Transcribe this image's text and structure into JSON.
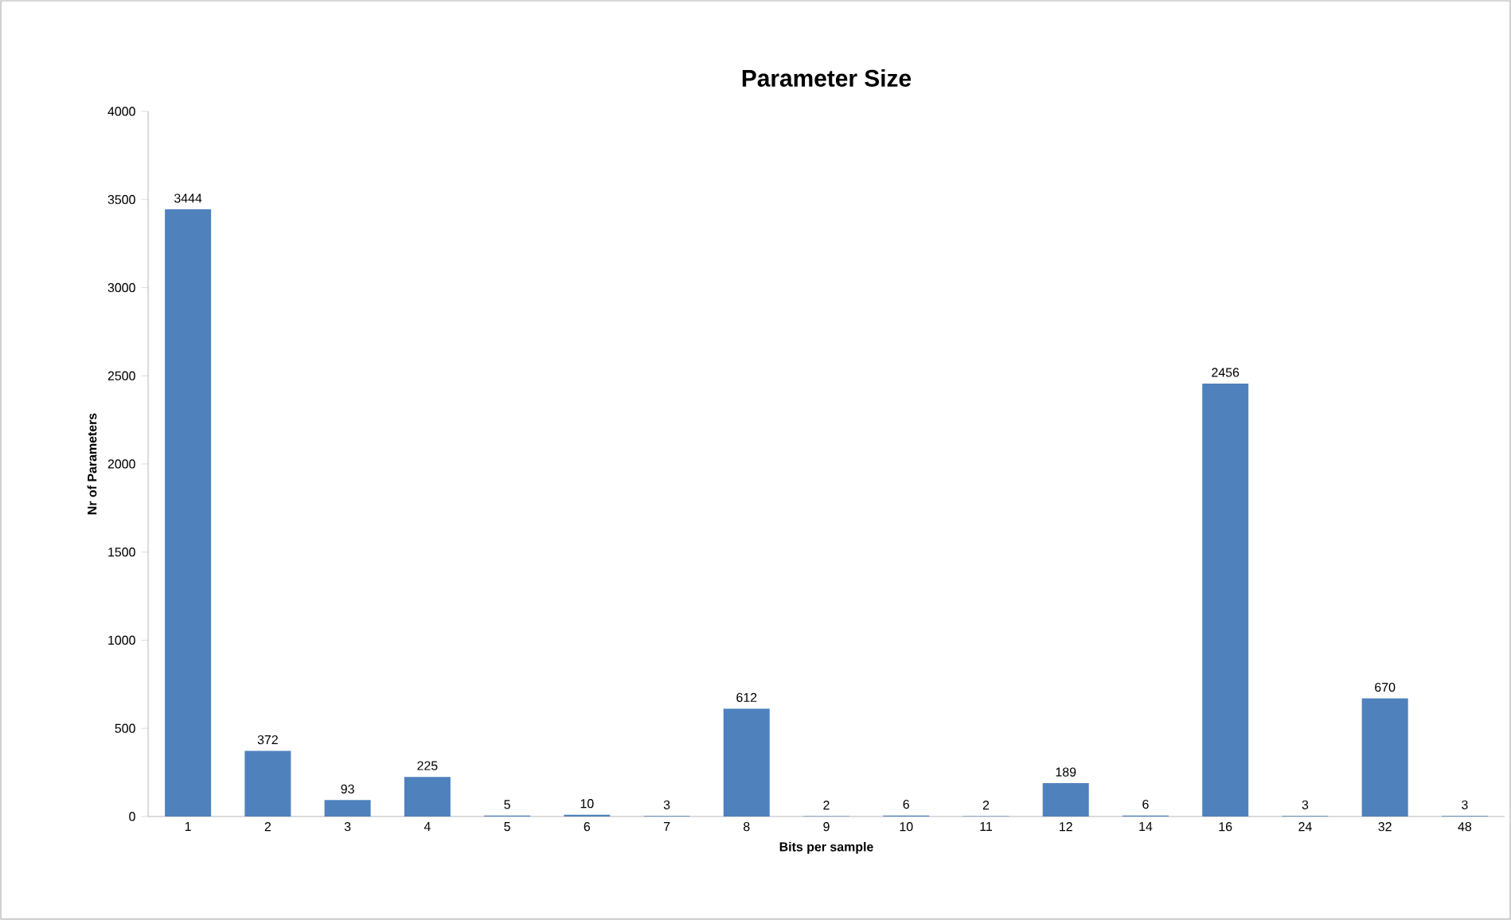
{
  "chart_data": {
    "type": "bar",
    "title": "Parameter Size",
    "xlabel": "Bits per sample",
    "ylabel": "Nr of Parameters",
    "categories": [
      "1",
      "2",
      "3",
      "4",
      "5",
      "6",
      "7",
      "8",
      "9",
      "10",
      "11",
      "12",
      "14",
      "16",
      "24",
      "32",
      "48"
    ],
    "values": [
      3444,
      372,
      93,
      225,
      5,
      10,
      3,
      612,
      2,
      6,
      2,
      189,
      6,
      2456,
      3,
      670,
      3
    ],
    "color": "#4f81bd",
    "data_labels": true,
    "ylim": [
      0,
      4000
    ],
    "yticks": [
      0,
      500,
      1000,
      1500,
      2000,
      2500,
      3000,
      3500,
      4000
    ]
  }
}
